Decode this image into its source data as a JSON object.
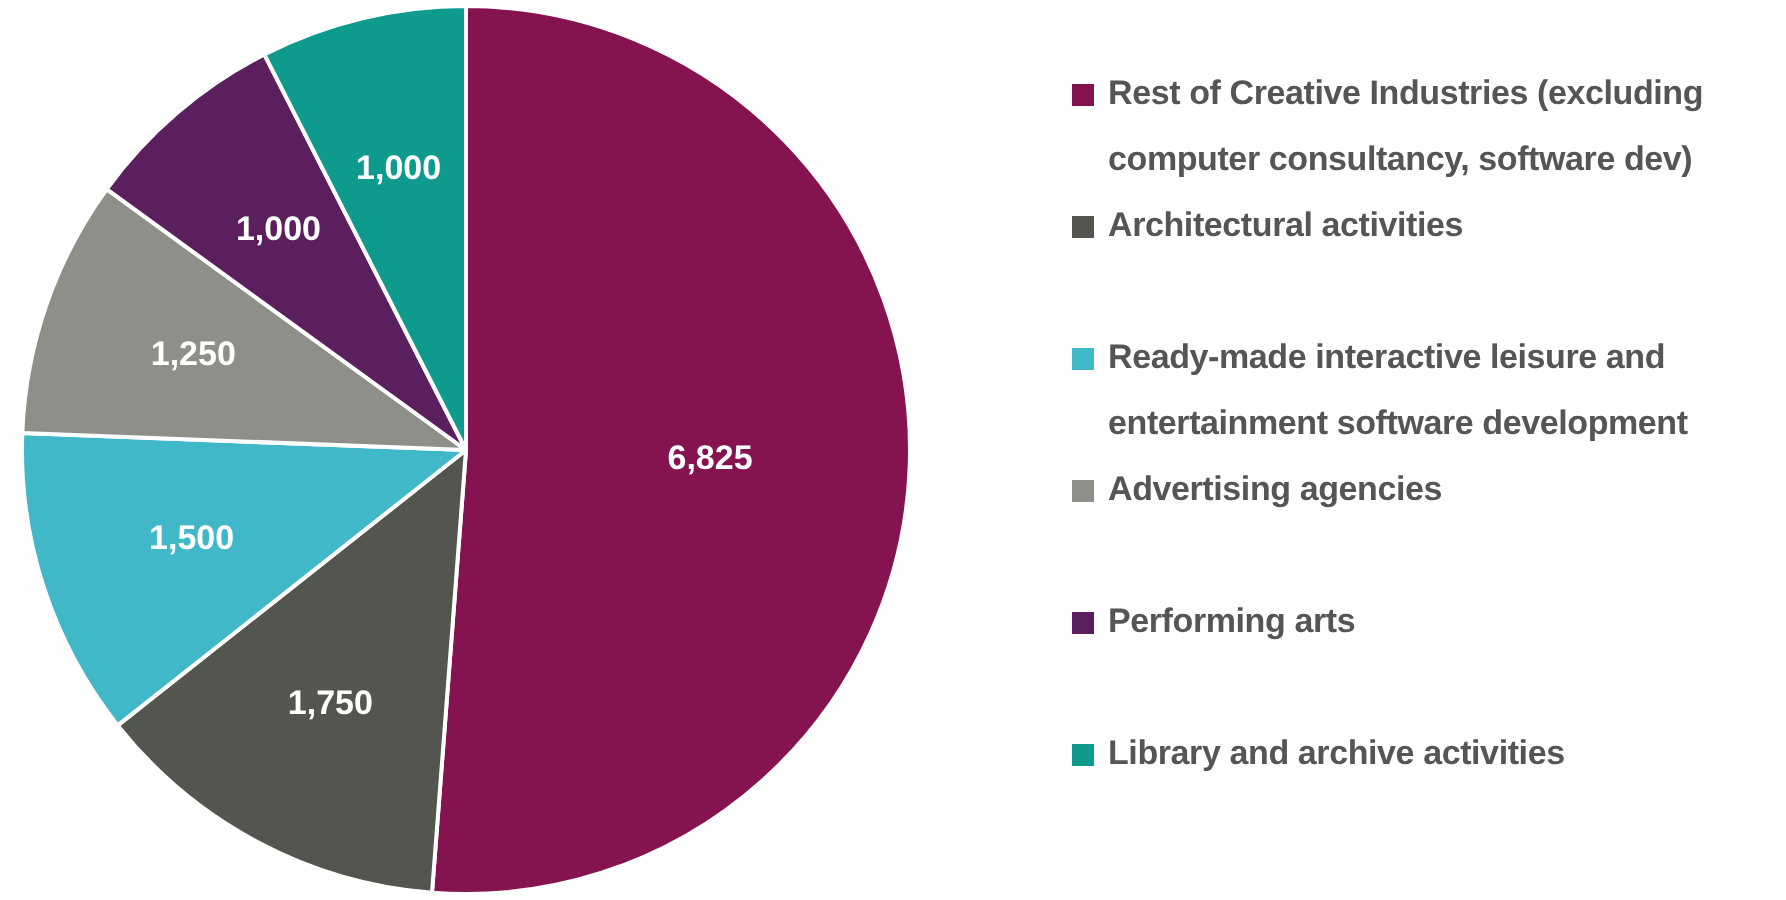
{
  "chart_data": {
    "type": "pie",
    "categories": [
      "Rest of Creative Industries (excluding computer consultancy, software dev)",
      "Architectural activities",
      "Ready-made interactive leisure and entertainment software development",
      "Advertising agencies",
      "Performing arts",
      "Library and archive activities"
    ],
    "values": [
      6825,
      1750,
      1500,
      1250,
      1000,
      1000
    ],
    "colors": [
      "#85134f",
      "#53564f",
      "#41b8c8",
      "#8f8f8a",
      "#5c1f5e",
      "#0f9a8e"
    ],
    "value_labels": [
      "6,825",
      "1,750",
      "1,500",
      "1,250",
      "1,000",
      "1,000"
    ],
    "legend": "right"
  }
}
